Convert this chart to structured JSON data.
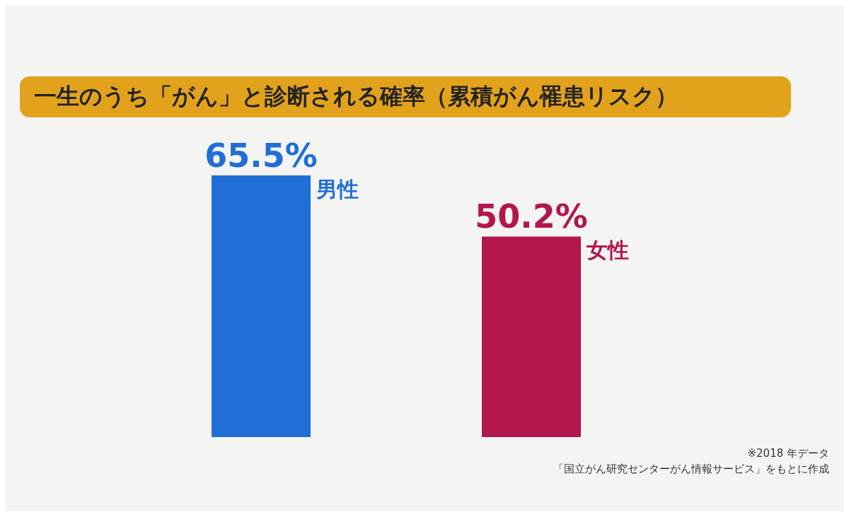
{
  "chart_data": {
    "type": "bar",
    "title": "一生のうち「がん」と診断される確率（累積がん罹患リスク）",
    "categories": [
      "男性",
      "女性"
    ],
    "values": [
      65.5,
      50.2
    ],
    "colors": [
      "#1f6fd6",
      "#b3164f"
    ],
    "value_labels": [
      "65.5%",
      "50.2%"
    ],
    "annotations": [
      "※2018 年データ",
      "「国立がん研究センターがん情報サービス」をもとに作成"
    ]
  }
}
